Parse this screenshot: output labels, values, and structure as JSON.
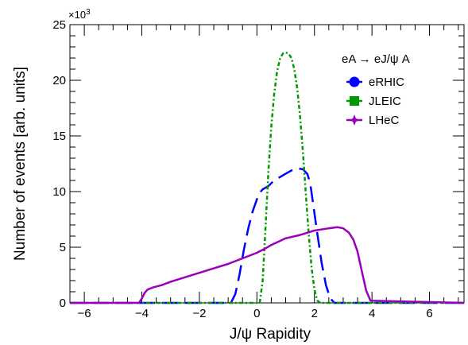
{
  "chart_data": {
    "type": "line",
    "xlabel": "J/ψ Rapidity",
    "ylabel": "Number of events [arb. units]",
    "y_multiplier": "×10",
    "y_multiplier_exponent": "3",
    "xlim": [
      -6.5,
      7.2
    ],
    "ylim": [
      0,
      25
    ],
    "x_ticks": [
      -6,
      -4,
      -2,
      0,
      2,
      4,
      6
    ],
    "x_tick_labels": [
      "−6",
      "−4",
      "−2",
      "0",
      "2",
      "4",
      "6"
    ],
    "y_ticks": [
      0,
      5,
      10,
      15,
      20,
      25
    ],
    "y_tick_labels": [
      "0",
      "5",
      "10",
      "15",
      "20",
      "25"
    ],
    "grid": false,
    "legend": {
      "title": "eA → eJ/ψ A",
      "placement": "top-right"
    },
    "series": [
      {
        "name": "eRHIC",
        "color": "#0000ff",
        "line_style": "dashed",
        "marker": "circle",
        "x": [
          -6.5,
          -0.9,
          -0.75,
          -0.6,
          -0.45,
          -0.3,
          -0.15,
          0.0,
          0.1,
          0.2,
          0.4,
          0.6,
          0.8,
          1.0,
          1.2,
          1.4,
          1.6,
          1.75,
          1.85,
          1.95,
          2.1,
          2.25,
          2.4,
          2.55,
          2.7,
          7.2
        ],
        "y": [
          0,
          0,
          0.8,
          2.6,
          4.8,
          6.7,
          8.2,
          9.3,
          9.9,
          10.2,
          10.5,
          11.0,
          11.3,
          11.6,
          11.9,
          12.1,
          12.0,
          11.6,
          10.8,
          9.0,
          6.2,
          3.6,
          1.6,
          0.4,
          0,
          0
        ]
      },
      {
        "name": "JLEIC",
        "color": "#009900",
        "line_style": "dash-dot",
        "marker": "square",
        "x": [
          -6.5,
          0.1,
          0.2,
          0.3,
          0.4,
          0.5,
          0.6,
          0.7,
          0.8,
          0.9,
          1.0,
          1.1,
          1.2,
          1.3,
          1.4,
          1.5,
          1.6,
          1.7,
          1.8,
          1.9,
          2.0,
          2.1,
          2.2,
          7.2
        ],
        "y": [
          0,
          0,
          2.0,
          6.8,
          11.8,
          15.8,
          18.8,
          20.8,
          21.9,
          22.4,
          22.5,
          22.4,
          22.0,
          21.0,
          19.3,
          16.8,
          13.5,
          9.8,
          6.2,
          3.2,
          1.2,
          0.2,
          0,
          0
        ]
      },
      {
        "name": "LHeC",
        "color": "#9900bb",
        "line_style": "solid",
        "marker": "star",
        "x": [
          -6.5,
          -4.1,
          -4.0,
          -3.9,
          -3.8,
          -3.6,
          -3.3,
          -3.0,
          -2.5,
          -2.0,
          -1.5,
          -1.0,
          -0.5,
          0.0,
          0.3,
          0.5,
          1.0,
          1.5,
          2.0,
          2.5,
          2.8,
          3.0,
          3.2,
          3.35,
          3.5,
          3.65,
          3.8,
          3.95,
          7.2
        ],
        "y": [
          0,
          0,
          0.4,
          0.9,
          1.2,
          1.4,
          1.6,
          1.9,
          2.3,
          2.7,
          3.1,
          3.5,
          4.0,
          4.5,
          4.9,
          5.2,
          5.8,
          6.1,
          6.5,
          6.7,
          6.8,
          6.7,
          6.3,
          5.7,
          4.6,
          2.8,
          1.1,
          0.2,
          0
        ]
      }
    ]
  }
}
